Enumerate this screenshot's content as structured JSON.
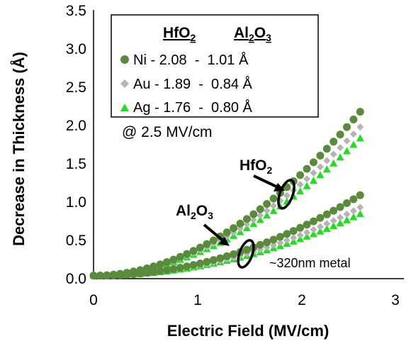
{
  "chart_data": {
    "type": "scatter",
    "xlabel": "Electric Field (MV/cm)",
    "ylabel": "Decrease in Thickness (Å)",
    "xlim": [
      0,
      3
    ],
    "ylim": [
      0,
      3.5
    ],
    "x_ticks": [
      "0",
      "1",
      "2",
      "3"
    ],
    "y_ticks": [
      "0.0",
      "0.5",
      "1.0",
      "1.5",
      "2.0",
      "2.5",
      "3.0",
      "3.5"
    ],
    "grid": false,
    "legend_position": "top-left",
    "legend_header": {
      "col1": "HfO",
      "col1_sub": "2",
      "col2": "Al",
      "col2_sub1": "2",
      "col2_mid": "O",
      "col2_sub2": "3"
    },
    "legend_rows": [
      {
        "label": "Ni - 2.08  -  1.01 Å",
        "marker": "circle",
        "color": "#5a8a3c"
      },
      {
        "label": "Au - 1.89  -  0.84 Å",
        "marker": "diamond",
        "color": "#b4b4b4"
      },
      {
        "label": "Ag - 1.76  -  0.80 Å",
        "marker": "triangle",
        "color": "#22dd22"
      }
    ],
    "annotations": {
      "field_note": "@ 2.5 MV/cm",
      "hfo2_main": "HfO",
      "hfo2_sub": "2",
      "al2o3_a": "Al",
      "al2o3_sub1": "2",
      "al2o3_b": "O",
      "al2o3_sub2": "3",
      "metal_note": "~320nm metal"
    },
    "series": [
      {
        "name": "Ni HfO2",
        "marker": "circle",
        "color": "#5a8a3c",
        "x_end": 2.56,
        "y_end": 2.18,
        "exponent": 1.9
      },
      {
        "name": "Au HfO2",
        "marker": "diamond",
        "color": "#b4b4b4",
        "x_end": 2.56,
        "y_end": 1.98,
        "exponent": 1.9
      },
      {
        "name": "Ag HfO2",
        "marker": "triangle",
        "color": "#22dd22",
        "x_end": 2.56,
        "y_end": 1.83,
        "exponent": 1.9
      },
      {
        "name": "Ni Al2O3",
        "marker": "circle",
        "color": "#5a8a3c",
        "x_end": 2.56,
        "y_end": 1.09,
        "exponent": 2.0
      },
      {
        "name": "Au Al2O3",
        "marker": "diamond",
        "color": "#b4b4b4",
        "x_end": 2.56,
        "y_end": 0.93,
        "exponent": 2.0
      },
      {
        "name": "Ag Al2O3",
        "marker": "triangle",
        "color": "#22dd22",
        "x_end": 2.56,
        "y_end": 0.84,
        "exponent": 2.0
      }
    ]
  }
}
